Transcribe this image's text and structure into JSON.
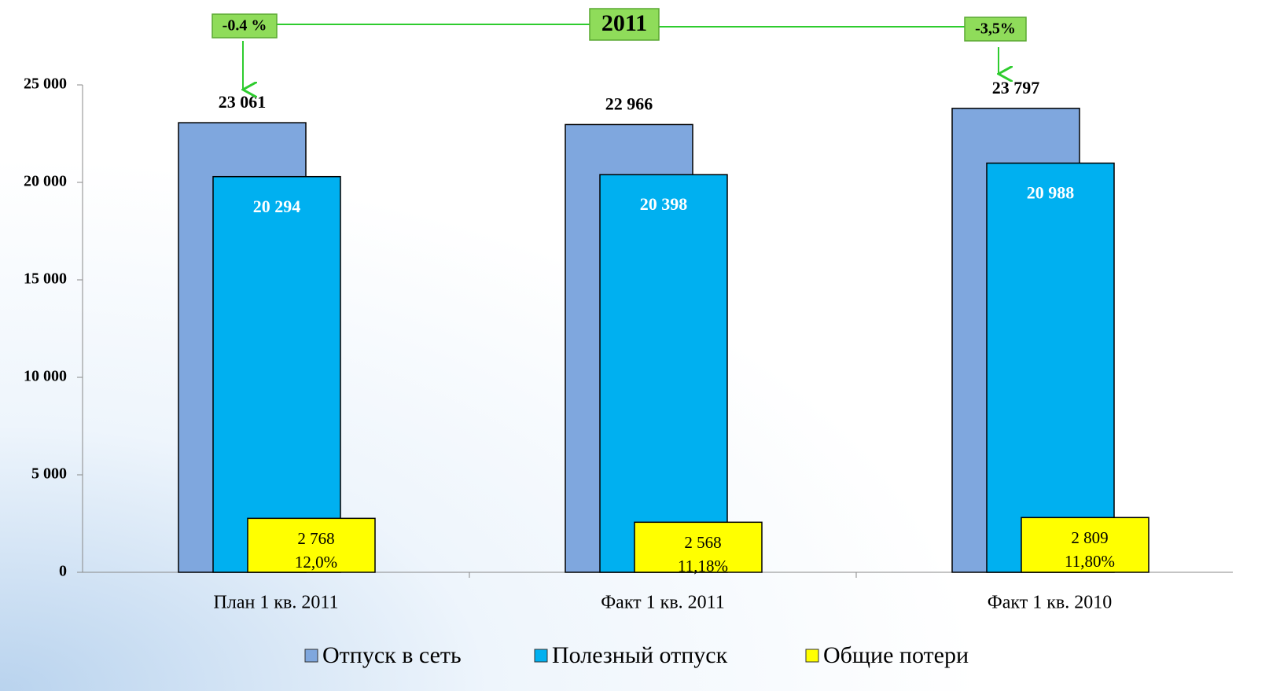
{
  "chart_data": {
    "type": "bar",
    "categories": [
      "План 1 кв. 2011",
      "Факт 1 кв. 2011",
      "Факт 1 кв. 2010"
    ],
    "series": [
      {
        "name": "Отпуск в сеть",
        "color": "#7FA7DE",
        "values": [
          23061,
          22966,
          23797
        ],
        "value_labels": [
          "23 061",
          "22 966",
          "23 797"
        ]
      },
      {
        "name": "Полезный отпуск",
        "color": "#00B0F0",
        "values": [
          20294,
          20398,
          20988
        ],
        "value_labels": [
          "20 294",
          "20 398",
          "20 988"
        ]
      },
      {
        "name": "Общие потери",
        "color": "#FFFF00",
        "values": [
          2768,
          2568,
          2809
        ],
        "value_labels": [
          "2 768",
          "2 568",
          "2 809"
        ],
        "share_labels": [
          "12,0%",
          "11,18%",
          "11,80%"
        ]
      }
    ],
    "ylim": [
      0,
      25000
    ],
    "yticks": [
      0,
      {
        "value": 5000,
        "label": "5 000"
      },
      {
        "value": 10000,
        "label": "10 000"
      },
      {
        "value": 15000,
        "label": "15 000"
      },
      {
        "value": 20000,
        "label": "20 000"
      },
      {
        "value": 25000,
        "label": "25 000"
      }
    ],
    "annotations": [
      "-0.4 %",
      "2011",
      "-3,5%"
    ],
    "legend": "bottom"
  }
}
